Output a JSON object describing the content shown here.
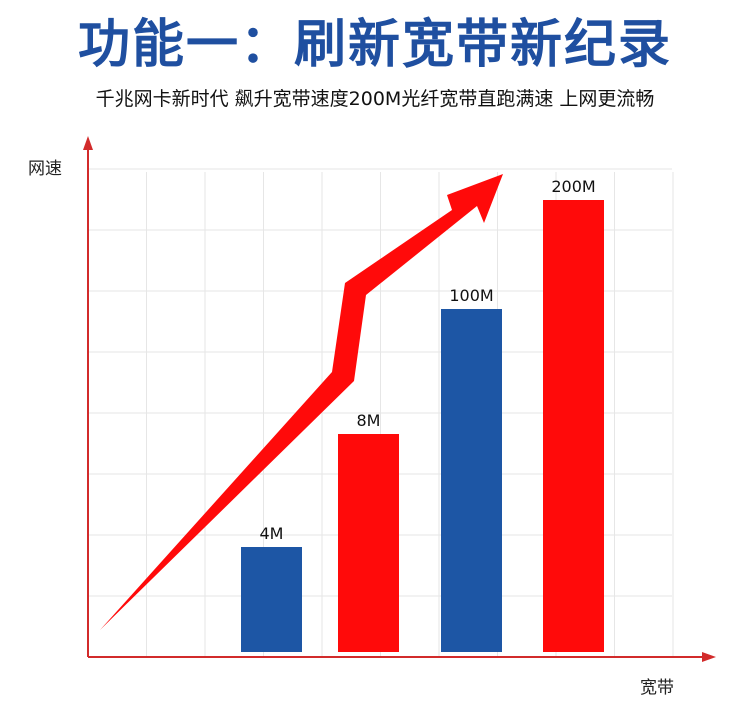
{
  "header": {
    "title": "功能一：刷新宽带新纪录",
    "subtitle": "千兆网卡新时代 飙升宽带速度200M光纤宽带直跑满速 上网更流畅"
  },
  "colors": {
    "title": "#1f4fa0",
    "blue": "#1d56a5",
    "red": "#ff0a0a",
    "axis": "#d22b2b"
  },
  "chart_data": {
    "type": "bar",
    "ylabel": "网速",
    "xlabel": "宽带",
    "categories": [
      "",
      "",
      "",
      ""
    ],
    "values": [
      4,
      8,
      100,
      200
    ],
    "value_labels": [
      "4M",
      "8M",
      "100M",
      "200M"
    ],
    "bar_colors": [
      "#1d56a5",
      "#ff0a0a",
      "#1d56a5",
      "#ff0a0a"
    ],
    "grid": true,
    "trend_arrow": true
  }
}
